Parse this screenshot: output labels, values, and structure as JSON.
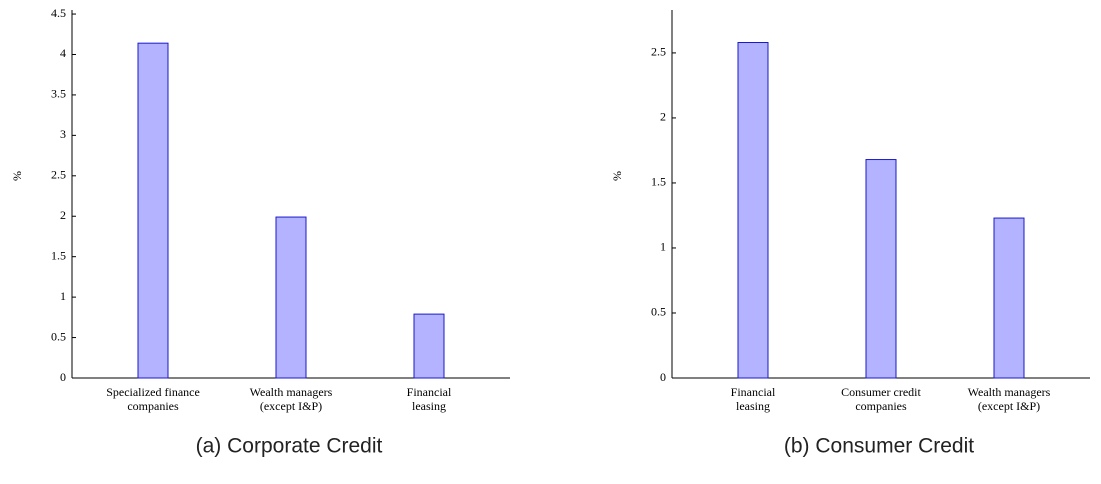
{
  "chart_data": [
    {
      "type": "bar",
      "caption": "(a) Corporate Credit",
      "ylabel": "%",
      "categories": [
        [
          "Specialized finance",
          "companies"
        ],
        [
          "Wealth managers",
          "(except I&P)"
        ],
        [
          "Financial",
          "leasing"
        ]
      ],
      "values": [
        4.14,
        1.99,
        0.79
      ],
      "color": "#b3b3ff",
      "edgecolor": "#1a1acc",
      "ylim": [
        0,
        4.55
      ],
      "yticks": [
        0,
        0.5,
        1,
        1.5,
        2,
        2.5,
        3,
        3.5,
        4,
        4.5
      ]
    },
    {
      "type": "bar",
      "caption": "(b) Consumer Credit",
      "ylabel": "%",
      "categories": [
        [
          "Financial",
          "leasing"
        ],
        [
          "Consumer credit",
          "companies"
        ],
        [
          "Wealth managers",
          "(except I&P)"
        ]
      ],
      "values": [
        2.58,
        1.68,
        1.23
      ],
      "color": "#b3b3ff",
      "edgecolor": "#1a1acc",
      "ylim": [
        0,
        2.83
      ],
      "yticks": [
        0,
        0.5,
        1,
        1.5,
        2,
        2.5
      ]
    }
  ]
}
